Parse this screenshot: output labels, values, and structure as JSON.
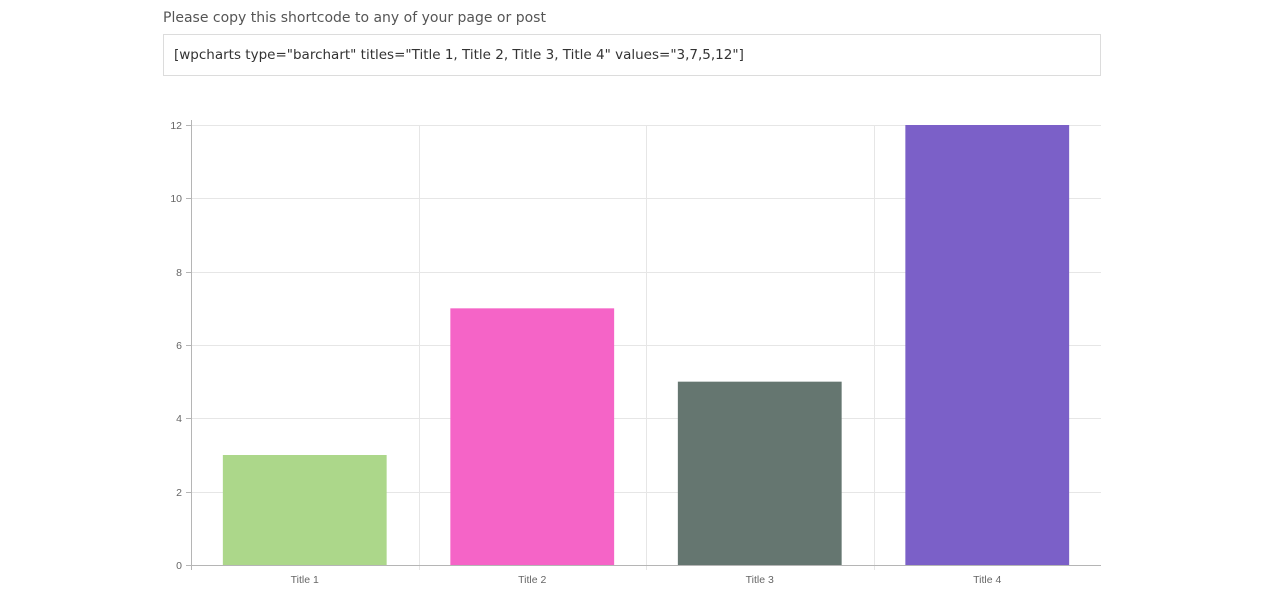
{
  "instruction": "Please copy this shortcode to any of your page or post",
  "shortcode": "[wpcharts type=\"barchart\" titles=\"Title 1, Title 2, Title 3, Title 4\" values=\"3,7,5,12\"]",
  "chart_data": {
    "type": "bar",
    "title": "",
    "xlabel": "",
    "ylabel": "",
    "categories": [
      "Title 1",
      "Title 2",
      "Title 3",
      "Title 4"
    ],
    "values": [
      3,
      7,
      5,
      12
    ],
    "ylim": [
      0,
      12
    ],
    "yticks": [
      "0",
      "2",
      "4",
      "6",
      "8",
      "10",
      "12"
    ],
    "grid": true,
    "legend": "none",
    "colors": [
      "#acd78a",
      "#f564c7",
      "#657670",
      "#7b60c8"
    ],
    "grid_color": "#e6e6e6",
    "axis_color": "#b5b5b5",
    "tick_label_color": "#666666"
  }
}
